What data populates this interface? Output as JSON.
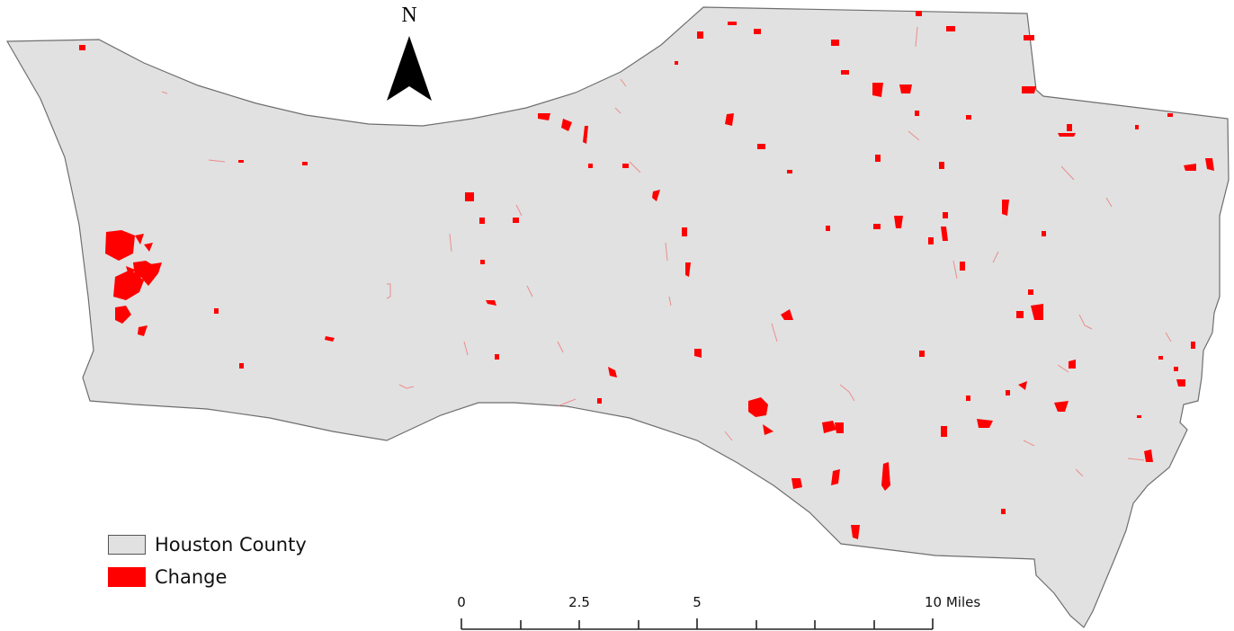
{
  "map": {
    "north_label": "N",
    "colors": {
      "county_fill": "#e1e1e1",
      "county_stroke": "#6e6e6e",
      "change_fill": "#ff0000"
    }
  },
  "legend": {
    "items": [
      {
        "label": "Houston County",
        "color": "#e1e1e1"
      },
      {
        "label": "Change",
        "color": "#ff0000"
      }
    ]
  },
  "scale_bar": {
    "labels": [
      "0",
      "2.5",
      "5",
      "10 Miles"
    ]
  }
}
